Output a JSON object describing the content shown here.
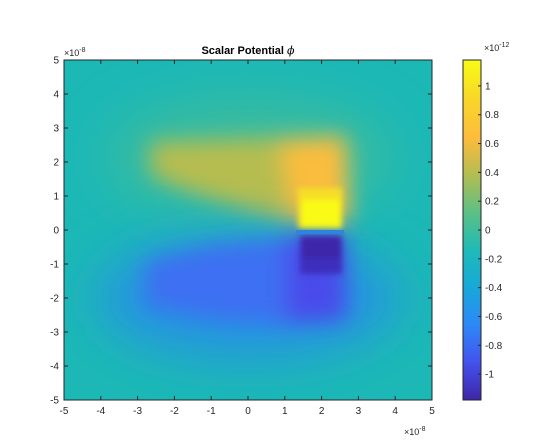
{
  "chart_data": {
    "type": "heatmap",
    "title": "Scalar Potential",
    "title_symbol": "ϕ",
    "x_axis": {
      "range": [
        -5e-08,
        5e-08
      ],
      "ticks": [
        -5,
        -4,
        -3,
        -2,
        -1,
        0,
        1,
        2,
        3,
        4,
        5
      ],
      "tick_labels": [
        "-5",
        "-4",
        "-3",
        "-2",
        "-1",
        "0",
        "1",
        "2",
        "3",
        "4",
        "5"
      ],
      "multiplier_label": "×10",
      "multiplier_exponent": "-8"
    },
    "y_axis": {
      "range": [
        -5e-08,
        5e-08
      ],
      "ticks": [
        5,
        4,
        3,
        2,
        1,
        0,
        -1,
        -2,
        -3,
        -4,
        -5
      ],
      "tick_labels": [
        "5",
        "4",
        "3",
        "2",
        "1",
        "0",
        "-1",
        "-2",
        "-3",
        "-4",
        "-5"
      ],
      "multiplier_label": "×10",
      "multiplier_exponent": "-8"
    },
    "colorbar": {
      "range": [
        -1.18e-12,
        1.18e-12
      ],
      "ticks": [
        1,
        0.8,
        0.6,
        0.4,
        0.2,
        0,
        -0.2,
        -0.4,
        -0.6,
        -0.8,
        -1
      ],
      "tick_labels": [
        "1",
        "0.8",
        "0.6",
        "0.4",
        "0.2",
        "0",
        "-0.2",
        "-0.4",
        "-0.6",
        "-0.8",
        "-1"
      ],
      "multiplier_label": "×10",
      "multiplier_exponent": "-12",
      "colormap": "parula",
      "colormap_stops": [
        "#3e26a8",
        "#4352ed",
        "#2d88f7",
        "#17a8d9",
        "#1fbab8",
        "#5bc086",
        "#b1bd52",
        "#fdbc3c",
        "#f9d52a",
        "#f9fb15"
      ]
    },
    "features": [
      {
        "region": "positive source block",
        "x_range": [
          1.5e-08,
          2.6e-08
        ],
        "y_range": [
          0,
          2.5e-08
        ],
        "peak_value": 1.15e-12
      },
      {
        "region": "negative source block",
        "x_range": [
          1.5e-08,
          2.6e-08
        ],
        "y_range": [
          -1.2e-08,
          0
        ],
        "peak_value": -1.15e-12
      },
      {
        "region": "positive lobe",
        "x_range": [
          -2.6e-08,
          3e-08
        ],
        "y_range": [
          3e-09,
          2.6e-08
        ],
        "value": 5.5e-13
      },
      {
        "region": "negative lobe",
        "x_range": [
          -3e-08,
          2.9e-08
        ],
        "y_range": [
          -3.3e-08,
          0
        ],
        "value": -5.5e-13
      }
    ],
    "background_value": 5e-14,
    "grid": false,
    "legend": "colorbar-right"
  }
}
